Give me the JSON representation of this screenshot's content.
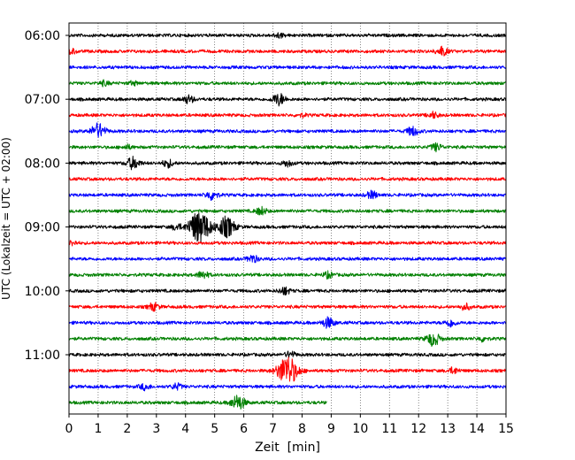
{
  "chart_data": {
    "type": "line",
    "title": "",
    "xlabel": "Zeit  [min]",
    "ylabel": "UTC (Lokalzeit = UTC + 02:00)",
    "xlim": [
      0,
      15
    ],
    "xticks": [
      "0",
      "1",
      "2",
      "3",
      "4",
      "5",
      "6",
      "7",
      "8",
      "9",
      "10",
      "11",
      "12",
      "13",
      "14",
      "15"
    ],
    "yticks": [
      "06:00",
      "07:00",
      "08:00",
      "09:00",
      "10:00",
      "11:00"
    ],
    "grid": "vertical dotted",
    "trace_interval_min": 15,
    "color_cycle": [
      "#000000",
      "#ff0000",
      "#0000ff",
      "#008000"
    ],
    "traces": [
      {
        "start": "06:00",
        "color": "#000000",
        "end_min": 15,
        "events": [
          {
            "t": 7.2,
            "amp": 1.5
          }
        ]
      },
      {
        "start": "06:15",
        "color": "#ff0000",
        "end_min": 15,
        "events": [
          {
            "t": 12.8,
            "amp": 3.0
          },
          {
            "t": 0.1,
            "amp": 1.5
          }
        ]
      },
      {
        "start": "06:30",
        "color": "#0000ff",
        "end_min": 15,
        "events": []
      },
      {
        "start": "06:45",
        "color": "#008000",
        "end_min": 15,
        "events": [
          {
            "t": 1.2,
            "amp": 1.5
          },
          {
            "t": 2.2,
            "amp": 1.2
          }
        ]
      },
      {
        "start": "07:00",
        "color": "#000000",
        "end_min": 15,
        "events": [
          {
            "t": 4.1,
            "amp": 2.5
          },
          {
            "t": 7.2,
            "amp": 4.0
          }
        ]
      },
      {
        "start": "07:15",
        "color": "#ff0000",
        "end_min": 15,
        "events": [
          {
            "t": 12.5,
            "amp": 2.0
          },
          {
            "t": 8.0,
            "amp": 1.0
          }
        ]
      },
      {
        "start": "07:30",
        "color": "#0000ff",
        "end_min": 15,
        "events": [
          {
            "t": 1.0,
            "amp": 5.0
          },
          {
            "t": 11.8,
            "amp": 3.0
          }
        ]
      },
      {
        "start": "07:45",
        "color": "#008000",
        "end_min": 15,
        "events": [
          {
            "t": 12.6,
            "amp": 2.5
          },
          {
            "t": 2.0,
            "amp": 1.3
          }
        ]
      },
      {
        "start": "08:00",
        "color": "#000000",
        "end_min": 15,
        "events": [
          {
            "t": 2.2,
            "amp": 4.0
          },
          {
            "t": 3.4,
            "amp": 2.5
          },
          {
            "t": 7.5,
            "amp": 2.0
          }
        ]
      },
      {
        "start": "08:15",
        "color": "#ff0000",
        "end_min": 15,
        "events": []
      },
      {
        "start": "08:30",
        "color": "#0000ff",
        "end_min": 15,
        "events": [
          {
            "t": 4.9,
            "amp": 3.0
          },
          {
            "t": 10.4,
            "amp": 2.5
          }
        ]
      },
      {
        "start": "08:45",
        "color": "#008000",
        "end_min": 15,
        "events": [
          {
            "t": 6.6,
            "amp": 2.5
          }
        ]
      },
      {
        "start": "09:00",
        "color": "#000000",
        "end_min": 15,
        "events": [
          {
            "t": 4.3,
            "amp": 6.0
          },
          {
            "t": 4.6,
            "amp": 8.0
          },
          {
            "t": 5.4,
            "amp": 7.0
          },
          {
            "t": 3.7,
            "amp": 2.0
          }
        ]
      },
      {
        "start": "09:15",
        "color": "#ff0000",
        "end_min": 15,
        "events": [
          {
            "t": 0.1,
            "amp": 1.5
          }
        ]
      },
      {
        "start": "09:30",
        "color": "#0000ff",
        "end_min": 15,
        "events": [
          {
            "t": 6.3,
            "amp": 2.5
          }
        ]
      },
      {
        "start": "09:45",
        "color": "#008000",
        "end_min": 15,
        "events": [
          {
            "t": 4.6,
            "amp": 2.5
          },
          {
            "t": 8.9,
            "amp": 2.0
          }
        ]
      },
      {
        "start": "10:00",
        "color": "#000000",
        "end_min": 15,
        "events": [
          {
            "t": 7.4,
            "amp": 2.5
          }
        ]
      },
      {
        "start": "10:15",
        "color": "#ff0000",
        "end_min": 15,
        "events": [
          {
            "t": 2.9,
            "amp": 2.5
          },
          {
            "t": 13.6,
            "amp": 2.0
          }
        ]
      },
      {
        "start": "10:30",
        "color": "#0000ff",
        "end_min": 15,
        "events": [
          {
            "t": 8.9,
            "amp": 3.5
          },
          {
            "t": 13.1,
            "amp": 2.5
          }
        ]
      },
      {
        "start": "10:45",
        "color": "#008000",
        "end_min": 15,
        "events": [
          {
            "t": 12.5,
            "amp": 4.5
          },
          {
            "t": 14.2,
            "amp": 1.5
          }
        ]
      },
      {
        "start": "11:00",
        "color": "#000000",
        "end_min": 15,
        "events": [
          {
            "t": 7.6,
            "amp": 2.0
          }
        ]
      },
      {
        "start": "11:15",
        "color": "#ff0000",
        "end_min": 15,
        "events": [
          {
            "t": 7.5,
            "amp": 10.0
          },
          {
            "t": 13.2,
            "amp": 2.0
          }
        ]
      },
      {
        "start": "11:30",
        "color": "#0000ff",
        "end_min": 15,
        "events": [
          {
            "t": 2.6,
            "amp": 2.0
          },
          {
            "t": 3.7,
            "amp": 2.0
          }
        ]
      },
      {
        "start": "11:45",
        "color": "#008000",
        "end_min": 8.85,
        "events": [
          {
            "t": 5.8,
            "amp": 5.0
          }
        ]
      }
    ]
  }
}
